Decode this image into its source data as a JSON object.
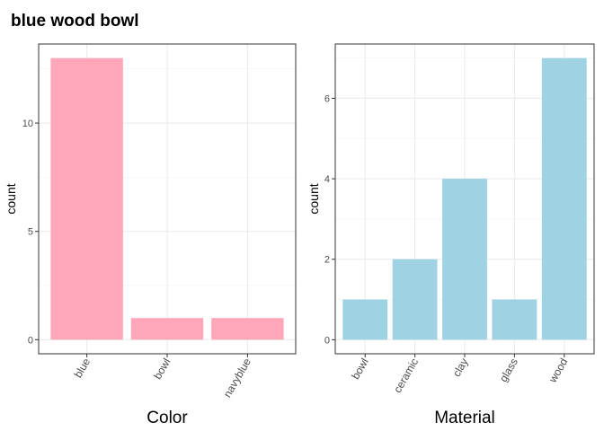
{
  "title": "blue wood bowl",
  "chart_data": [
    {
      "type": "bar",
      "xlabel": "Color",
      "ylabel": "count",
      "categories": [
        "blue",
        "bowl",
        "navyblue"
      ],
      "values": [
        13,
        1,
        1
      ],
      "ylim": [
        -0.65,
        13.65
      ],
      "yticks": [
        0,
        5,
        10
      ],
      "color": "#FFA6B8",
      "grid": true,
      "legend": "none"
    },
    {
      "type": "bar",
      "xlabel": "Material",
      "ylabel": "count",
      "categories": [
        "bowl",
        "ceramic",
        "clay",
        "glass",
        "wood"
      ],
      "values": [
        1,
        2,
        4,
        1,
        7
      ],
      "ylim": [
        -0.35,
        7.35
      ],
      "yticks": [
        0,
        2,
        4,
        6
      ],
      "color": "#9FD2E3",
      "grid": true,
      "legend": "none"
    }
  ]
}
